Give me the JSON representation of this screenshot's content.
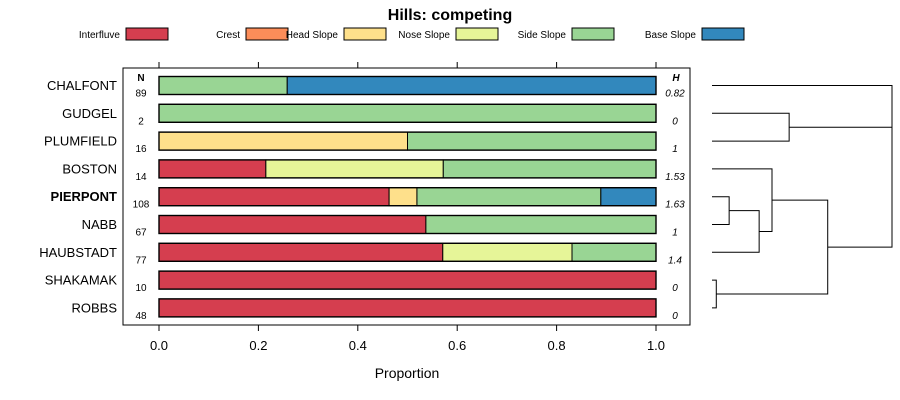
{
  "chart_data": {
    "type": "bar",
    "stacked": true,
    "orientation": "horizontal",
    "title": "Hills: competing",
    "xlabel": "Proportion",
    "ylabel": "",
    "xlim": [
      0,
      1
    ],
    "xticks": [
      "0.0",
      "0.2",
      "0.4",
      "0.6",
      "0.8",
      "1.0"
    ],
    "n_header": "N",
    "h_header": "H",
    "categories": [
      "CHALFONT",
      "GUDGEL",
      "PLUMFIELD",
      "BOSTON",
      "PIERPONT",
      "NABB",
      "HAUBSTADT",
      "SHAKAMAK",
      "ROBBS"
    ],
    "highlighted": "PIERPONT",
    "n": [
      "89",
      "2",
      "16",
      "14",
      "108",
      "67",
      "77",
      "10",
      "48"
    ],
    "h": [
      "0.82",
      "0",
      "1",
      "1.53",
      "1.63",
      "1",
      "1.4",
      "0",
      "0"
    ],
    "series": [
      {
        "name": "Interfluve",
        "color": "#d53e4f",
        "values": [
          0,
          0,
          0,
          0.215,
          0.463,
          0.537,
          0.571,
          1,
          1
        ]
      },
      {
        "name": "Crest",
        "color": "#fc8d59",
        "values": [
          0,
          0,
          0,
          0,
          0,
          0,
          0,
          0,
          0
        ]
      },
      {
        "name": "Head Slope",
        "color": "#fee08b",
        "values": [
          0,
          0,
          0.5,
          0,
          0.056,
          0,
          0,
          0,
          0
        ]
      },
      {
        "name": "Nose Slope",
        "color": "#e6f598",
        "values": [
          0,
          0,
          0,
          0.357,
          0,
          0,
          0.26,
          0,
          0
        ]
      },
      {
        "name": "Side Slope",
        "color": "#99d594",
        "values": [
          0.258,
          1,
          0.5,
          0.428,
          0.37,
          0.463,
          0.169,
          0,
          0
        ]
      },
      {
        "name": "Base Slope",
        "color": "#3288bd",
        "values": [
          0.742,
          0,
          0,
          0,
          0.111,
          0,
          0,
          0,
          0
        ]
      }
    ],
    "dendrogram": {
      "leaves": [
        "CHALFONT",
        "GUDGEL",
        "PLUMFIELD",
        "BOSTON",
        "PIERPONT",
        "NABB",
        "HAUBSTADT",
        "SHAKAMAK",
        "ROBBS"
      ],
      "merges": [
        {
          "a": "L1",
          "b": "L2",
          "height": 0.9
        },
        {
          "a": "L4",
          "b": "L5",
          "height": 0.2
        },
        {
          "a": "L7",
          "b": "L8",
          "height": 0.05
        },
        {
          "a": "N1",
          "b": "L6",
          "height": 0.55
        },
        {
          "a": "L3",
          "b": "N3",
          "height": 0.7
        },
        {
          "a": "N4",
          "b": "N2",
          "height": 1.35
        },
        {
          "a": "L0",
          "b": "N0",
          "height": 2.1
        },
        {
          "a": "N6",
          "b": "N5",
          "height": 2.1
        }
      ],
      "max_height": 2.1
    }
  }
}
